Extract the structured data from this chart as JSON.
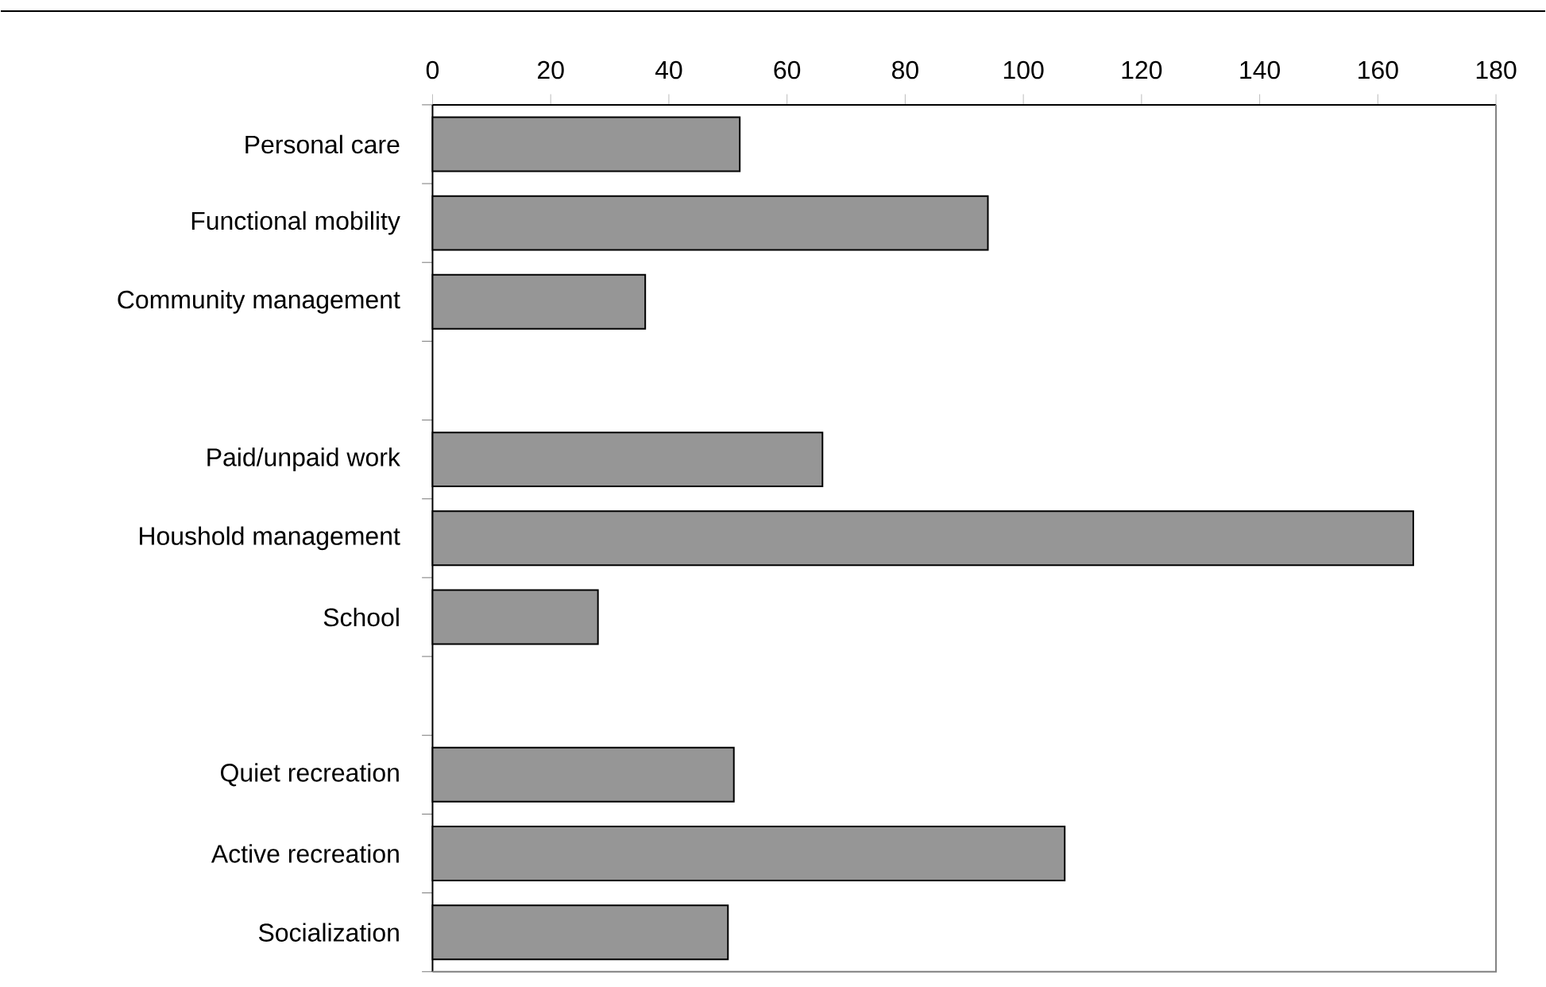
{
  "chart_data": {
    "type": "bar",
    "orientation": "horizontal",
    "categories": [
      "Personal care",
      "Functional mobility",
      "Community management",
      null,
      "Paid/unpaid work",
      "Houshold management",
      "School",
      null,
      "Quiet recreation",
      "Active recreation",
      "Socialization"
    ],
    "values": [
      52,
      94,
      36,
      null,
      66,
      166,
      28,
      null,
      51,
      107,
      50
    ],
    "color": "#969696",
    "xlim": [
      0,
      180
    ],
    "xticks": [
      0,
      20,
      40,
      60,
      80,
      100,
      120,
      140,
      160,
      180
    ]
  }
}
